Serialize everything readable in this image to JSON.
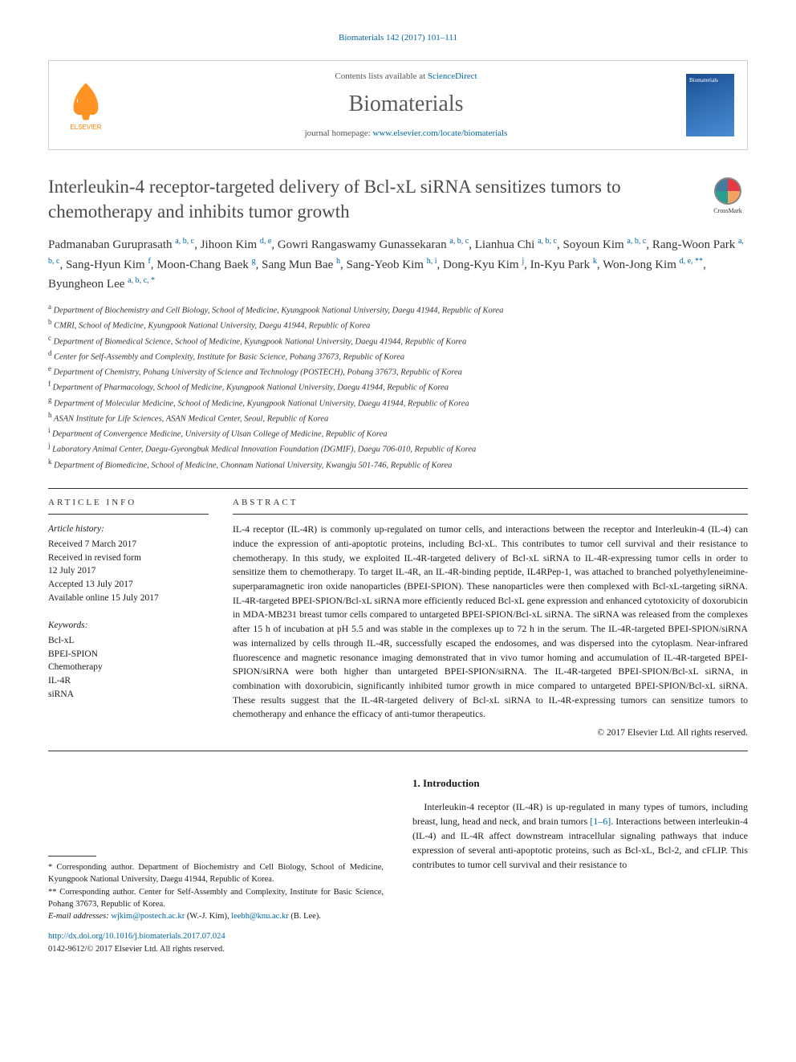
{
  "header": {
    "citation": "Biomaterials 142 (2017) 101–111",
    "contents_prefix": "Contents lists available at ",
    "contents_link": "ScienceDirect",
    "journal": "Biomaterials",
    "homepage_prefix": "journal homepage: ",
    "homepage_url": "www.elsevier.com/locate/biomaterials",
    "publisher_name": "ELSEVIER"
  },
  "crossmark": "CrossMark",
  "title": "Interleukin-4 receptor-targeted delivery of Bcl-xL siRNA sensitizes tumors to chemotherapy and inhibits tumor growth",
  "authors_html": "Padmanaban Guruprasath <span class='sup'>a, b, c</span>, Jihoon Kim <span class='sup'>d, e</span>, Gowri Rangaswamy Gunassekaran <span class='sup'>a, b, c</span>, Lianhua Chi <span class='sup'>a, b, c</span>, Soyoun Kim <span class='sup'>a, b, c</span>, Rang-Woon Park <span class='sup'>a, b, c</span>, Sang-Hyun Kim <span class='sup'>f</span>, Moon-Chang Baek <span class='sup'>g</span>, Sang Mun Bae <span class='sup'>h</span>, Sang-Yeob Kim <span class='sup'>h, i</span>, Dong-Kyu Kim <span class='sup'>j</span>, In-Kyu Park <span class='sup'>k</span>, Won-Jong Kim <span class='sup'>d, e, **</span>, Byungheon Lee <span class='sup'>a, b, c, *</span>",
  "affiliations": [
    {
      "key": "a",
      "text": "Department of Biochemistry and Cell Biology, School of Medicine, Kyungpook National University, Daegu 41944, Republic of Korea"
    },
    {
      "key": "b",
      "text": "CMRI, School of Medicine, Kyungpook National University, Daegu 41944, Republic of Korea"
    },
    {
      "key": "c",
      "text": "Department of Biomedical Science, School of Medicine, Kyungpook National University, Daegu 41944, Republic of Korea"
    },
    {
      "key": "d",
      "text": "Center for Self-Assembly and Complexity, Institute for Basic Science, Pohang 37673, Republic of Korea"
    },
    {
      "key": "e",
      "text": "Department of Chemistry, Pohang University of Science and Technology (POSTECH), Pohang 37673, Republic of Korea"
    },
    {
      "key": "f",
      "text": "Department of Pharmacology, School of Medicine, Kyungpook National University, Daegu 41944, Republic of Korea"
    },
    {
      "key": "g",
      "text": "Department of Molecular Medicine, School of Medicine, Kyungpook National University, Daegu 41944, Republic of Korea"
    },
    {
      "key": "h",
      "text": "ASAN Institute for Life Sciences, ASAN Medical Center, Seoul, Republic of Korea"
    },
    {
      "key": "i",
      "text": "Department of Convergence Medicine, University of Ulsan College of Medicine, Republic of Korea"
    },
    {
      "key": "j",
      "text": "Laboratory Animal Center, Daegu-Gyeongbuk Medical Innovation Foundation (DGMIF), Daegu 706-010, Republic of Korea"
    },
    {
      "key": "k",
      "text": "Department of Biomedicine, School of Medicine, Chonnam National University, Kwangju 501-746, Republic of Korea"
    }
  ],
  "article_info": {
    "heading": "article info",
    "history_label": "Article history:",
    "history": [
      "Received 7 March 2017",
      "Received in revised form",
      "12 July 2017",
      "Accepted 13 July 2017",
      "Available online 15 July 2017"
    ],
    "keywords_label": "Keywords:",
    "keywords": [
      "Bcl-xL",
      "BPEI-SPION",
      "Chemotherapy",
      "IL-4R",
      "siRNA"
    ]
  },
  "abstract": {
    "heading": "abstract",
    "body": "IL-4 receptor (IL-4R) is commonly up-regulated on tumor cells, and interactions between the receptor and Interleukin-4 (IL-4) can induce the expression of anti-apoptotic proteins, including Bcl-xL. This contributes to tumor cell survival and their resistance to chemotherapy. In this study, we exploited IL-4R-targeted delivery of Bcl-xL siRNA to IL-4R-expressing tumor cells in order to sensitize them to chemotherapy. To target IL-4R, an IL-4R-binding peptide, IL4RPep-1, was attached to branched polyethyleneimine-superparamagnetic iron oxide nanoparticles (BPEI-SPION). These nanoparticles were then complexed with Bcl-xL-targeting siRNA. IL-4R-targeted BPEI-SPION/Bcl-xL siRNA more efficiently reduced Bcl-xL gene expression and enhanced cytotoxicity of doxorubicin in MDA-MB231 breast tumor cells compared to untargeted BPEI-SPION/Bcl-xL siRNA. The siRNA was released from the complexes after 15 h of incubation at pH 5.5 and was stable in the complexes up to 72 h in the serum. The IL-4R-targeted BPEI-SPION/siRNA was internalized by cells through IL-4R, successfully escaped the endosomes, and was dispersed into the cytoplasm. Near-infrared fluorescence and magnetic resonance imaging demonstrated that in vivo tumor homing and accumulation of IL-4R-targeted BPEI-SPION/siRNA were both higher than untargeted BPEI-SPION/siRNA. The IL-4R-targeted BPEI-SPION/Bcl-xL siRNA, in combination with doxorubicin, significantly inhibited tumor growth in mice compared to untargeted BPEI-SPION/Bcl-xL siRNA. These results suggest that the IL-4R-targeted delivery of Bcl-xL siRNA to IL-4R-expressing tumors can sensitize tumors to chemotherapy and enhance the efficacy of anti-tumor therapeutics.",
    "copyright": "© 2017 Elsevier Ltd. All rights reserved."
  },
  "footnotes": {
    "corr1": "* Corresponding author. Department of Biochemistry and Cell Biology, School of Medicine, Kyungpook National University, Daegu 41944, Republic of Korea.",
    "corr2": "** Corresponding author. Center for Self-Assembly and Complexity, Institute for Basic Science, Pohang 37673, Republic of Korea.",
    "email_label": "E-mail addresses: ",
    "email1": "wjkim@postech.ac.kr",
    "email1_who": " (W.-J. Kim), ",
    "email2": "leebh@knu.ac.kr",
    "email2_who": " (B. Lee).",
    "doi": "http://dx.doi.org/10.1016/j.biomaterials.2017.07.024",
    "issn": "0142-9612/© 2017 Elsevier Ltd. All rights reserved."
  },
  "intro": {
    "heading": "1. Introduction",
    "para": "Interleukin-4 receptor (IL-4R) is up-regulated in many types of tumors, including breast, lung, head and neck, and brain tumors ",
    "refs": "[1–6]",
    "para2": ". Interactions between interleukin-4 (IL-4) and IL-4R affect downstream intracellular signaling pathways that induce expression of several anti-apoptotic proteins, such as Bcl-xL, Bcl-2, and cFLIP. This contributes to tumor cell survival and their resistance to"
  },
  "colors": {
    "link": "#0066a1",
    "title": "#4a4a4a",
    "elsevier_orange": "#ff8200"
  }
}
